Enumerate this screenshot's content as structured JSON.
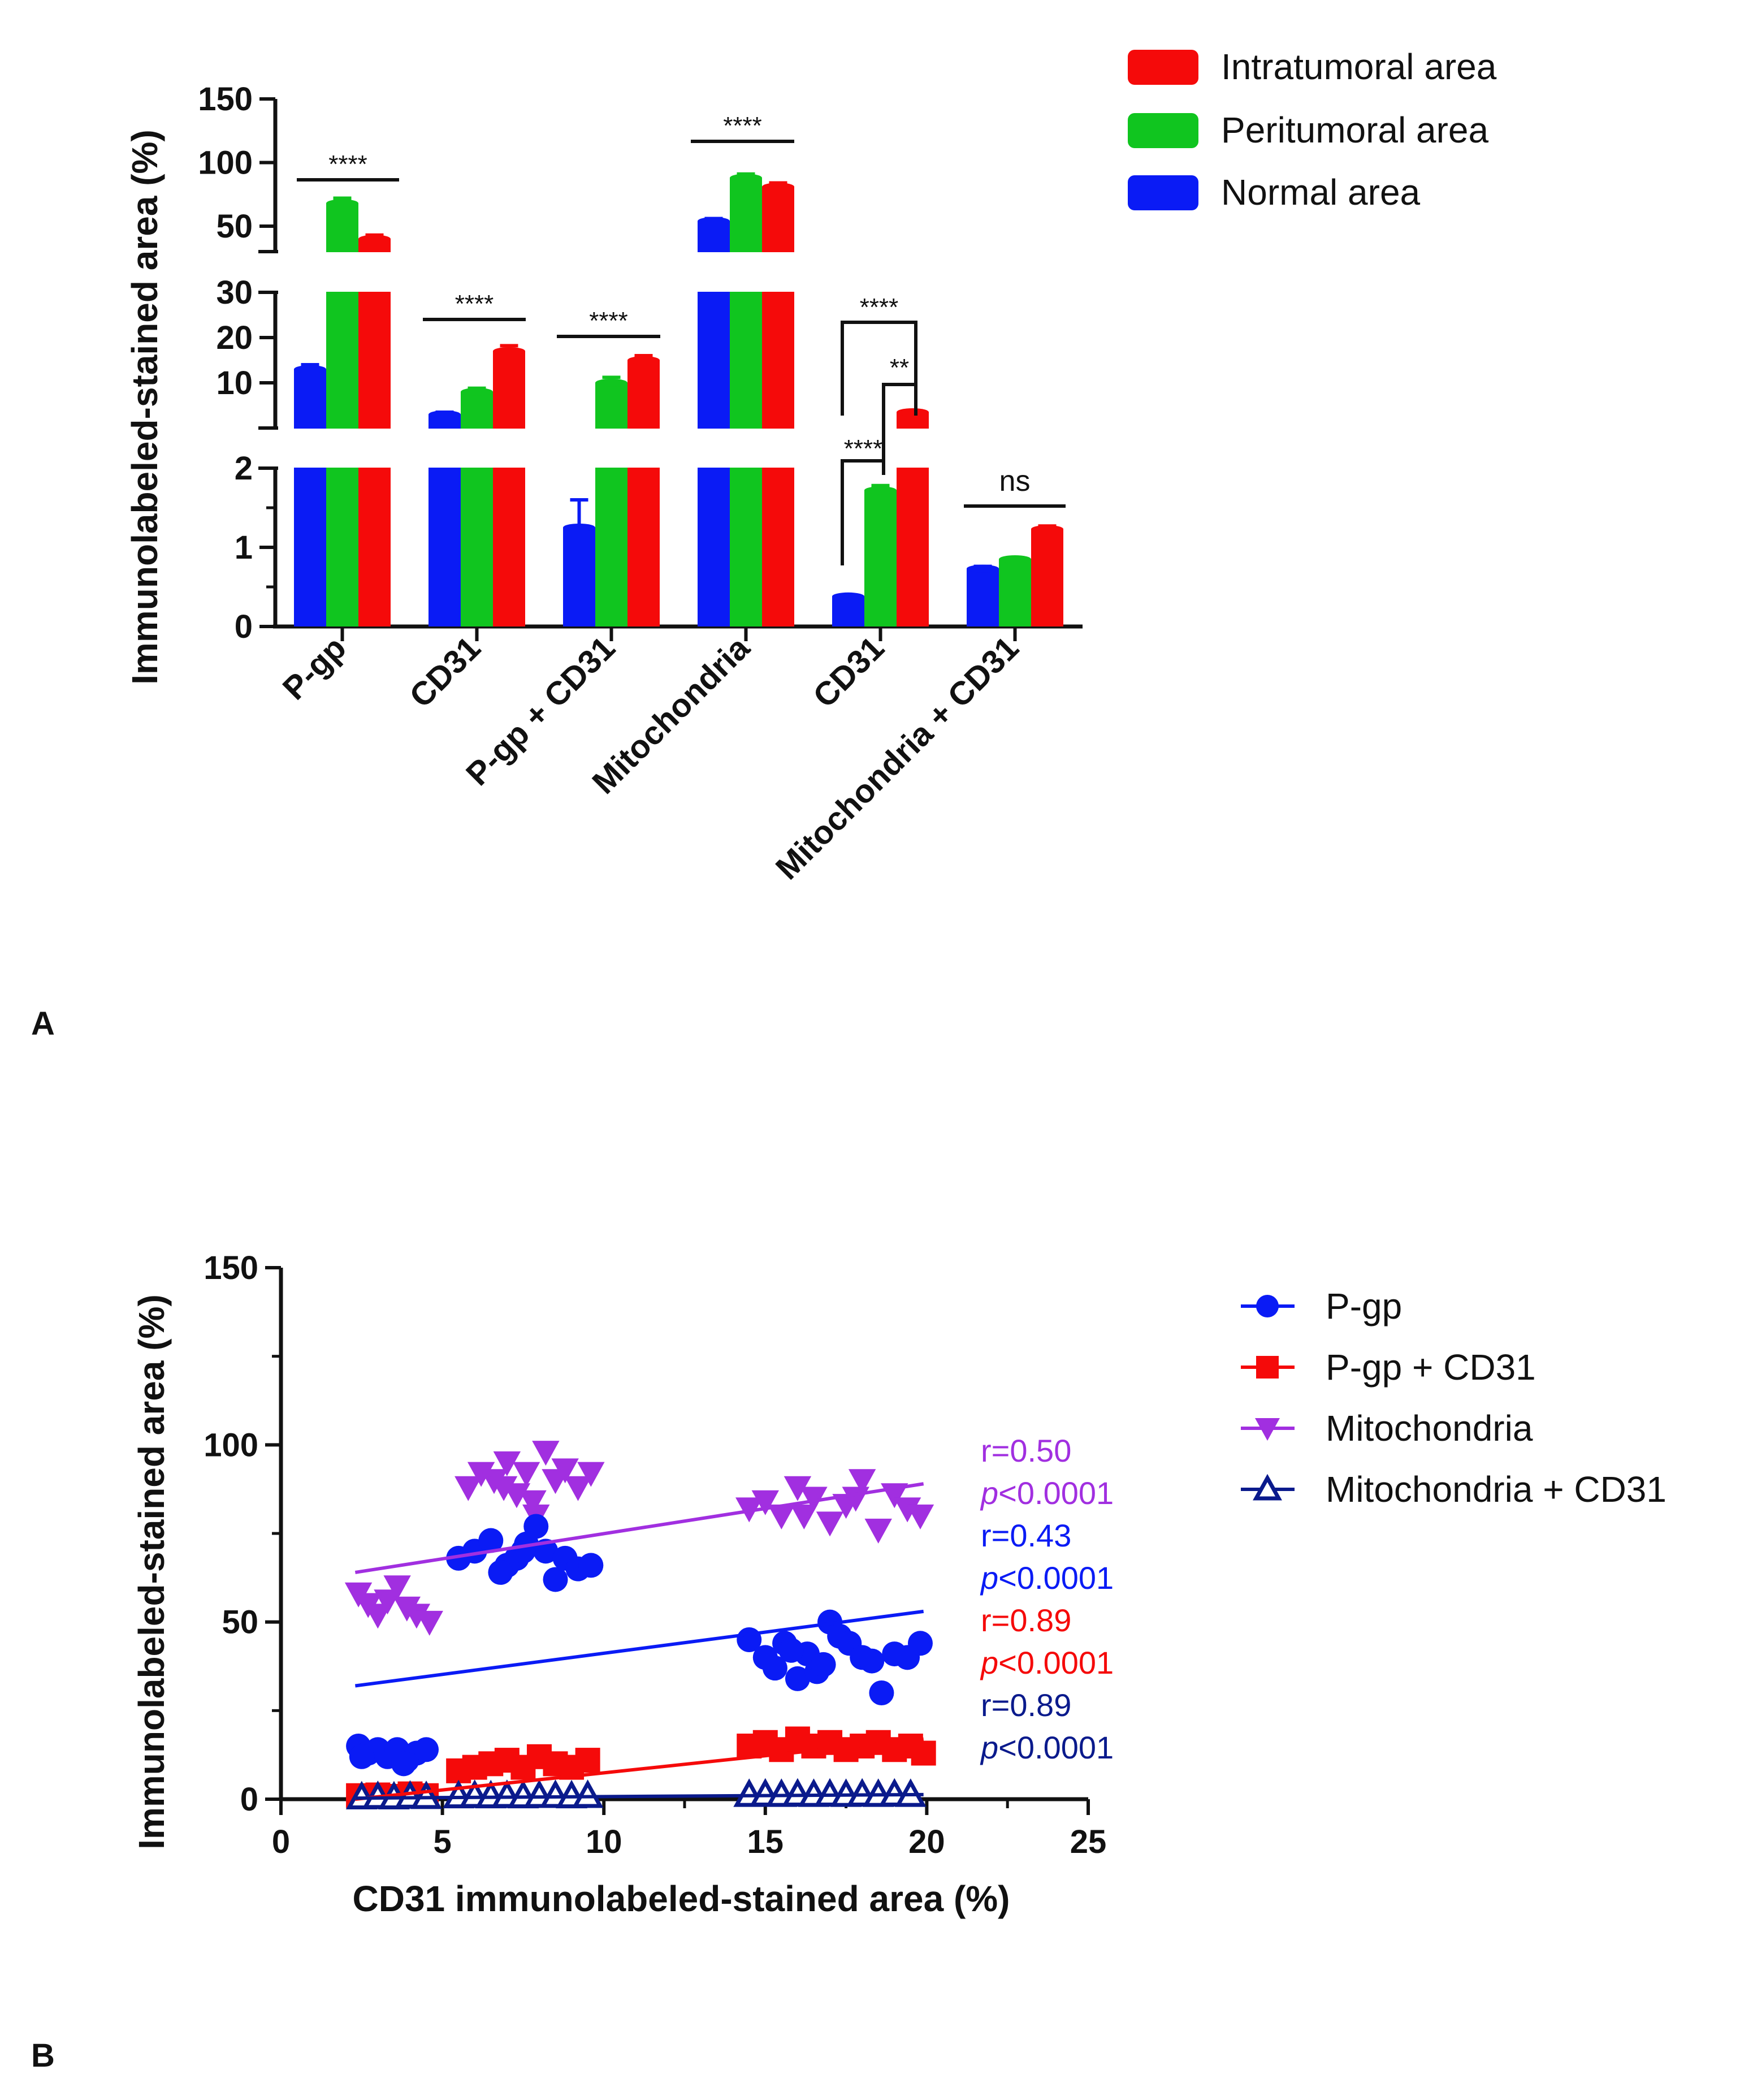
{
  "panel_a": {
    "label": "A",
    "colors": {
      "Normal area": "#0a1bf5",
      "Peritumoral area": "#10c51f",
      "Intratumoral area": "#f50a0a"
    },
    "chart_data": {
      "type": "bar",
      "ylabel": "Immunolabeled-stained area (%)",
      "y_axis_segments": [
        {
          "range": [
            0,
            2
          ],
          "ticks": [
            0,
            1,
            2
          ]
        },
        {
          "range": [
            0,
            30
          ],
          "ticks": [
            10,
            20,
            30
          ]
        },
        {
          "range": [
            30,
            150
          ],
          "ticks": [
            50,
            100,
            150
          ]
        }
      ],
      "categories": [
        "P-gp",
        "CD31",
        "P-gp + CD31",
        "Mitochondria",
        "CD31",
        "Mitochondria + CD31"
      ],
      "legend": [
        "Intratumoral area",
        "Peritumoral area",
        "Normal area"
      ],
      "series": [
        {
          "name": "Normal area",
          "values": [
            13,
            3,
            1.25,
            54,
            0.38,
            0.73
          ],
          "errors": [
            1,
            0.5,
            0.35,
            2,
            0.02,
            0.03
          ]
        },
        {
          "name": "Peritumoral area",
          "values": [
            68,
            8,
            10,
            88,
            1.72,
            0.85
          ],
          "errors": [
            4,
            0.8,
            1.2,
            3,
            0.06,
            0.02
          ]
        },
        {
          "name": "Intratumoral area",
          "values": [
            40,
            17,
            15,
            81,
            3.5,
            1.23
          ],
          "errors": [
            3,
            1.2,
            1,
            3,
            0.3,
            0.04
          ]
        }
      ],
      "significance": [
        {
          "category": 0,
          "label": "****"
        },
        {
          "category": 1,
          "label": "****"
        },
        {
          "category": 2,
          "label": "****"
        },
        {
          "category": 3,
          "label": "****"
        },
        {
          "category": 4,
          "label": "****",
          "compare": "Normal area vs Intratumoral area"
        },
        {
          "category": 4,
          "label": "**",
          "compare": "Peritumoral area vs Intratumoral area"
        },
        {
          "category": 4,
          "label": "****",
          "compare": "Normal area vs Peritumoral area"
        },
        {
          "category": 5,
          "label": "ns"
        }
      ]
    }
  },
  "panel_b": {
    "label": "B",
    "chart_data": {
      "type": "scatter",
      "xlabel": "CD31 immunolabeled-stained area (%)",
      "ylabel": "Immunolabeled-stained area (%)",
      "xlim": [
        0,
        25
      ],
      "ylim": [
        0,
        150
      ],
      "xticks": [
        0,
        5,
        10,
        15,
        20,
        25
      ],
      "yticks": [
        0,
        50,
        100,
        150
      ],
      "series": [
        {
          "name": "P-gp",
          "color": "#0a1bf5",
          "marker": "circle",
          "points": [
            [
              2.4,
              15
            ],
            [
              2.7,
              13
            ],
            [
              3.0,
              14
            ],
            [
              3.3,
              12
            ],
            [
              3.6,
              14
            ],
            [
              3.9,
              11
            ],
            [
              4.2,
              13
            ],
            [
              4.5,
              14
            ],
            [
              2.5,
              12
            ],
            [
              3.8,
              10
            ],
            [
              5.5,
              68
            ],
            [
              6.0,
              70
            ],
            [
              6.5,
              73
            ],
            [
              7.0,
              66
            ],
            [
              7.3,
              68
            ],
            [
              7.6,
              72
            ],
            [
              7.9,
              77
            ],
            [
              8.2,
              70
            ],
            [
              8.5,
              62
            ],
            [
              8.8,
              68
            ],
            [
              9.2,
              65
            ],
            [
              9.6,
              66
            ],
            [
              6.8,
              64
            ],
            [
              7.5,
              70
            ],
            [
              14.5,
              45
            ],
            [
              15.0,
              40
            ],
            [
              15.3,
              37
            ],
            [
              15.6,
              44
            ],
            [
              16.0,
              34
            ],
            [
              16.3,
              41
            ],
            [
              16.6,
              36
            ],
            [
              17.0,
              50
            ],
            [
              17.3,
              46
            ],
            [
              17.6,
              44
            ],
            [
              18.0,
              40
            ],
            [
              18.3,
              39
            ],
            [
              18.6,
              30
            ],
            [
              19.0,
              41
            ],
            [
              19.4,
              40
            ],
            [
              19.8,
              44
            ],
            [
              15.8,
              42
            ],
            [
              16.8,
              38
            ]
          ],
          "fit": {
            "x": [
              2.3,
              19.9
            ],
            "y": [
              32,
              53
            ]
          },
          "r_label": "r=0.43",
          "p_label": "<0.0001"
        },
        {
          "name": "P-gp + CD31",
          "color": "#f50a0a",
          "marker": "square",
          "points": [
            [
              2.4,
              1
            ],
            [
              3.0,
              1.2
            ],
            [
              3.5,
              0.8
            ],
            [
              4.0,
              1.5
            ],
            [
              4.5,
              1
            ],
            [
              5.5,
              8
            ],
            [
              6.0,
              9
            ],
            [
              6.5,
              10
            ],
            [
              7.0,
              11
            ],
            [
              7.5,
              9
            ],
            [
              8.0,
              12
            ],
            [
              8.5,
              10
            ],
            [
              9.0,
              9
            ],
            [
              9.5,
              11
            ],
            [
              14.5,
              15
            ],
            [
              15.0,
              16
            ],
            [
              15.5,
              14
            ],
            [
              16.0,
              17
            ],
            [
              16.5,
              15
            ],
            [
              17.0,
              16
            ],
            [
              17.5,
              14
            ],
            [
              18.0,
              15
            ],
            [
              18.5,
              16
            ],
            [
              19.0,
              14
            ],
            [
              19.5,
              15
            ],
            [
              19.9,
              13
            ]
          ],
          "fit": {
            "x": [
              2.3,
              19.9
            ],
            "y": [
              0,
              17
            ]
          },
          "r_label": "r=0.89",
          "p_label": "<0.0001"
        },
        {
          "name": "Mitochondria",
          "color": "#a12fe0",
          "marker": "triangle-down",
          "points": [
            [
              2.4,
              58
            ],
            [
              2.7,
              55
            ],
            [
              3.0,
              52
            ],
            [
              3.3,
              56
            ],
            [
              3.6,
              60
            ],
            [
              3.9,
              54
            ],
            [
              4.2,
              52
            ],
            [
              4.6,
              50
            ],
            [
              5.8,
              88
            ],
            [
              6.2,
              92
            ],
            [
              6.6,
              90
            ],
            [
              7.0,
              95
            ],
            [
              7.3,
              86
            ],
            [
              7.6,
              92
            ],
            [
              7.9,
              80
            ],
            [
              8.2,
              98
            ],
            [
              8.5,
              90
            ],
            [
              8.8,
              93
            ],
            [
              9.2,
              88
            ],
            [
              9.6,
              92
            ],
            [
              7.8,
              84
            ],
            [
              6.9,
              88
            ],
            [
              14.5,
              82
            ],
            [
              15.0,
              84
            ],
            [
              15.5,
              80
            ],
            [
              16.0,
              88
            ],
            [
              16.5,
              85
            ],
            [
              17.0,
              78
            ],
            [
              17.5,
              83
            ],
            [
              18.0,
              90
            ],
            [
              18.5,
              76
            ],
            [
              19.0,
              86
            ],
            [
              19.4,
              82
            ],
            [
              19.8,
              80
            ],
            [
              16.2,
              80
            ],
            [
              17.8,
              85
            ]
          ],
          "fit": {
            "x": [
              2.3,
              19.9
            ],
            "y": [
              64,
              89
            ]
          },
          "r_label": "r=0.50",
          "p_label": "<0.0001"
        },
        {
          "name": "Mitochondria + CD31",
          "color": "#0a1a8c",
          "marker": "triangle-open",
          "points": [
            [
              2.5,
              0.5
            ],
            [
              3.0,
              0.6
            ],
            [
              3.5,
              0.5
            ],
            [
              4.0,
              0.7
            ],
            [
              4.5,
              0.6
            ],
            [
              5.5,
              0.8
            ],
            [
              6.0,
              0.9
            ],
            [
              6.5,
              0.8
            ],
            [
              7.0,
              0.9
            ],
            [
              7.5,
              0.8
            ],
            [
              8.0,
              0.9
            ],
            [
              8.5,
              0.9
            ],
            [
              9.0,
              0.8
            ],
            [
              9.5,
              0.9
            ],
            [
              14.5,
              1.2
            ],
            [
              15.0,
              1.3
            ],
            [
              15.5,
              1.2
            ],
            [
              16.0,
              1.3
            ],
            [
              16.5,
              1.2
            ],
            [
              17.0,
              1.3
            ],
            [
              17.5,
              1.2
            ],
            [
              18.0,
              1.3
            ],
            [
              18.5,
              1.2
            ],
            [
              19.0,
              1.3
            ],
            [
              19.5,
              1.2
            ]
          ],
          "fit": {
            "x": [
              2.3,
              19.9
            ],
            "y": [
              0.3,
              1.3
            ]
          },
          "r_label": "r=0.89",
          "p_label": "<0.0001"
        }
      ],
      "annotations": [
        {
          "r": "r=0.50",
          "p_italic": "p",
          "p_rest": "<0.0001",
          "color": "#a12fe0"
        },
        {
          "r": "r=0.43",
          "p_italic": "p",
          "p_rest": "<0.0001",
          "color": "#0a1bf5"
        },
        {
          "r": "r=0.89",
          "p_italic": "p",
          "p_rest": "<0.0001",
          "color": "#f50a0a"
        },
        {
          "r": "r=0.89",
          "p_italic": "p",
          "p_rest": "<0.0001",
          "color": "#0a1a8c"
        }
      ]
    }
  }
}
